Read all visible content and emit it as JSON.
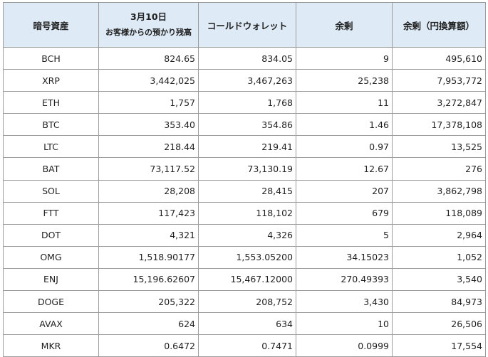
{
  "headers": {
    "asset": "暗号資産",
    "date": "3月10日",
    "date_sub": "お客様からの預かり残高",
    "cold": "コールドウォレット",
    "surplus": "余剰",
    "surplus_jpy": "余剰（円換算額）"
  },
  "rows": [
    {
      "asset": "BCH",
      "deposit": "824.65",
      "cold": "834.05",
      "surplus": "9",
      "jpy": "495,610"
    },
    {
      "asset": "XRP",
      "deposit": "3,442,025",
      "cold": "3,467,263",
      "surplus": "25,238",
      "jpy": "7,953,772"
    },
    {
      "asset": "ETH",
      "deposit": "1,757",
      "cold": "1,768",
      "surplus": "11",
      "jpy": "3,272,847"
    },
    {
      "asset": "BTC",
      "deposit": "353.40",
      "cold": "354.86",
      "surplus": "1.46",
      "jpy": "17,378,108"
    },
    {
      "asset": "LTC",
      "deposit": "218.44",
      "cold": "219.41",
      "surplus": "0.97",
      "jpy": "13,525"
    },
    {
      "asset": "BAT",
      "deposit": "73,117.52",
      "cold": "73,130.19",
      "surplus": "12.67",
      "jpy": "276"
    },
    {
      "asset": "SOL",
      "deposit": "28,208",
      "cold": "28,415",
      "surplus": "207",
      "jpy": "3,862,798"
    },
    {
      "asset": "FTT",
      "deposit": "117,423",
      "cold": "118,102",
      "surplus": "679",
      "jpy": "118,089"
    },
    {
      "asset": "DOT",
      "deposit": "4,321",
      "cold": "4,326",
      "surplus": "5",
      "jpy": "2,964"
    },
    {
      "asset": "OMG",
      "deposit": "1,518.90177",
      "cold": "1,553.05200",
      "surplus": "34.15023",
      "jpy": "1,052"
    },
    {
      "asset": "ENJ",
      "deposit": "15,196.62607",
      "cold": "15,467.12000",
      "surplus": "270.49393",
      "jpy": "3,540"
    },
    {
      "asset": "DOGE",
      "deposit": "205,322",
      "cold": "208,752",
      "surplus": "3,430",
      "jpy": "84,973"
    },
    {
      "asset": "AVAX",
      "deposit": "624",
      "cold": "634",
      "surplus": "10",
      "jpy": "26,506"
    },
    {
      "asset": "MKR",
      "deposit": "0.6472",
      "cold": "0.7471",
      "surplus": "0.0999",
      "jpy": "17,554"
    }
  ]
}
